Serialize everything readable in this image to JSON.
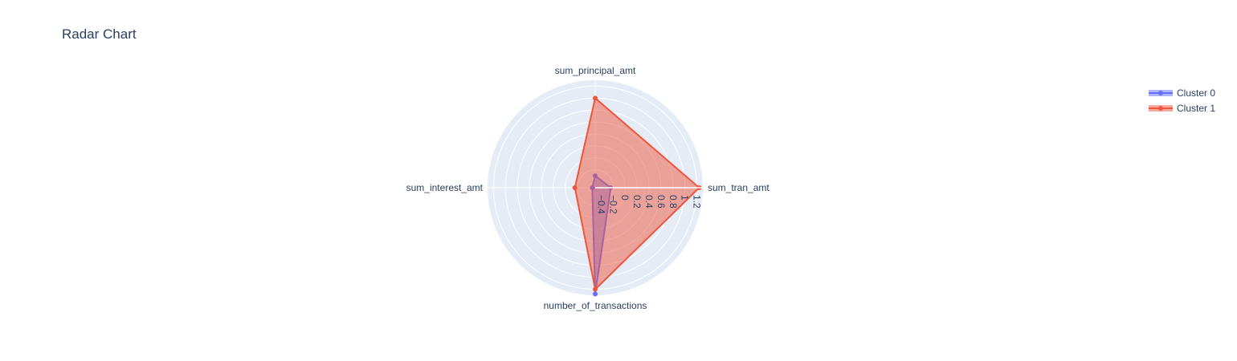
{
  "chart_data": {
    "type": "radar",
    "title": "Radar Chart",
    "axes": [
      "sum_tran_amt",
      "sum_principal_amt",
      "sum_interest_amt",
      "number_of_transactions"
    ],
    "radial_range": [
      -0.5,
      1.3
    ],
    "radial_ticks": [
      -0.4,
      -0.2,
      0,
      0.2,
      0.4,
      0.6,
      0.8,
      1,
      1.2
    ],
    "radial_tick_labels": [
      "−0.4",
      "−0.2",
      "0",
      "0.2",
      "0.4",
      "0.6",
      "0.8",
      "1",
      "1.2"
    ],
    "grid": true,
    "legend_position": "top-right",
    "series": [
      {
        "name": "Cluster 0",
        "color": "#636efa",
        "values": [
          -0.24,
          -0.3,
          -0.45,
          1.28
        ]
      },
      {
        "name": "Cluster 1",
        "color": "#ef553b",
        "values": [
          1.24,
          1.0,
          -0.16,
          1.2
        ]
      }
    ]
  }
}
